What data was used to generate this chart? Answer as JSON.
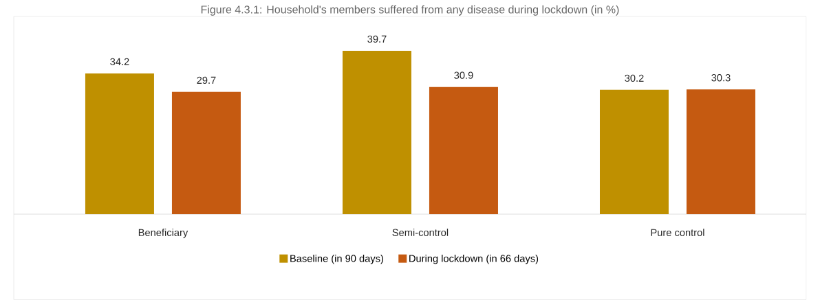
{
  "chart_data": {
    "type": "bar",
    "title": "Figure 4.3.1: Household's members suffered from any disease during lockdown (in %)",
    "categories": [
      "Beneficiary",
      "Semi-control",
      "Pure control"
    ],
    "series": [
      {
        "name": "Baseline (in 90 days)",
        "color": "#bf9000",
        "values": [
          34.2,
          39.7,
          30.2
        ]
      },
      {
        "name": "During lockdown (in 66 days)",
        "color": "#c55a11",
        "values": [
          29.7,
          30.9,
          30.3
        ]
      }
    ],
    "data_labels": true,
    "legend": "bottom"
  }
}
